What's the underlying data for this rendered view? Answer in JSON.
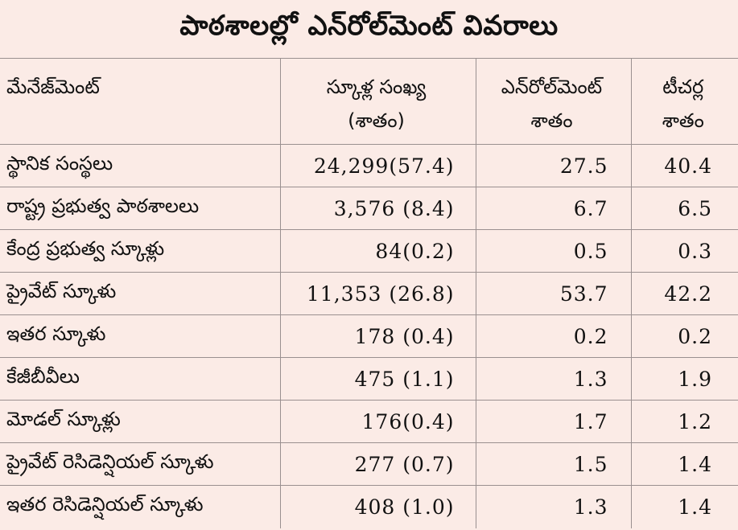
{
  "title": "పాఠశాలల్లో ఎన్‌రోల్‌మెంట్‌ వివరాలు",
  "headers": {
    "management": "మేనేజ్‌మెంట్‌",
    "schools_line1": "స్కూళ్ల సంఖ్య",
    "schools_line2": "(శాతం)",
    "enrollment_line1": "ఎన్‌రోల్‌మెంట్‌",
    "enrollment_line2": "శాతం",
    "teachers_line1": "టీచర్ల",
    "teachers_line2": "శాతం"
  },
  "rows": [
    {
      "name": "స్థానిక సంస్థలు",
      "schools": "24,299(57.4)",
      "enrollment": "27.5",
      "teachers": "40.4"
    },
    {
      "name": "రాష్ట్ర ప్రభుత్వ పాఠశాలలు",
      "schools": "3,576 (8.4)",
      "enrollment": "6.7",
      "teachers": "6.5"
    },
    {
      "name": "కేంద్ర ప్రభుత్వ స్కూళ్లు",
      "schools": "84(0.2)",
      "enrollment": "0.5",
      "teachers": "0.3"
    },
    {
      "name": "ప్రైవేట్‌ స్కూళు",
      "schools": "11,353 (26.8)",
      "enrollment": "53.7",
      "teachers": "42.2"
    },
    {
      "name": "ఇతర స్కూళు",
      "schools": "178 (0.4)",
      "enrollment": "0.2",
      "teachers": "0.2"
    },
    {
      "name": "కేజీబీవీలు",
      "schools": "475 (1.1)",
      "enrollment": "1.3",
      "teachers": "1.9"
    },
    {
      "name": "మోడల్‌ స్కూళ్లు",
      "schools": "176(0.4)",
      "enrollment": "1.7",
      "teachers": "1.2"
    },
    {
      "name": "ప్రైవేట్‌ రెసిడెన్షియల్‌ స్కూళు",
      "schools": "277 (0.7)",
      "enrollment": "1.5",
      "teachers": "1.4"
    },
    {
      "name": "ఇతర రెసిడెన్షియల్‌ స్కూళు",
      "schools": "408 (1.0)",
      "enrollment": "1.3",
      "teachers": "1.4"
    }
  ]
}
